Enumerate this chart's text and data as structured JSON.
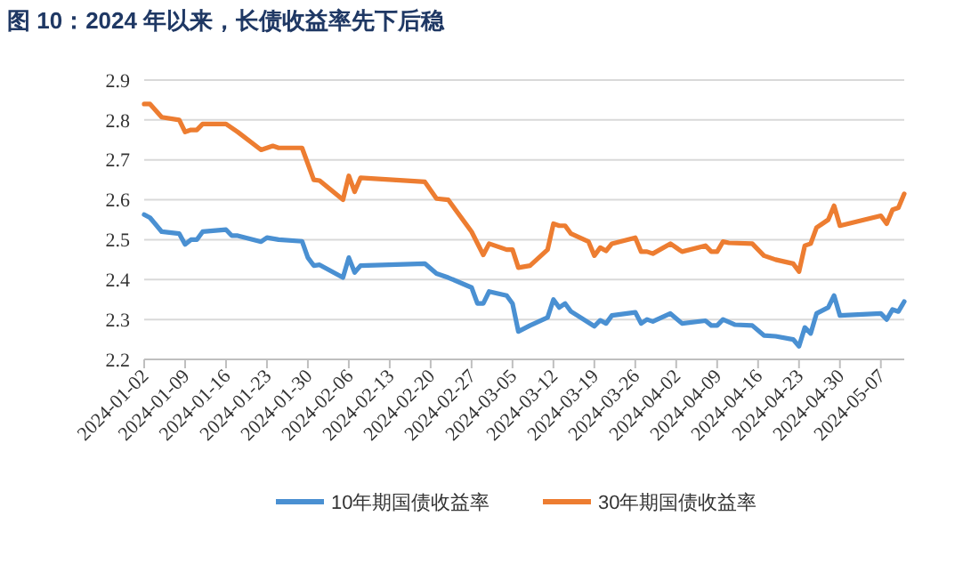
{
  "chart_data": {
    "type": "line",
    "title": "图 10：2024 年以来，长债收益率先下后稳",
    "xlim": [
      "2024-01-02",
      "2024-05-11"
    ],
    "xticks": [
      "2024-01-02",
      "2024-01-09",
      "2024-01-16",
      "2024-01-23",
      "2024-01-30",
      "2024-02-06",
      "2024-02-13",
      "2024-02-20",
      "2024-02-27",
      "2024-03-05",
      "2024-03-12",
      "2024-03-19",
      "2024-03-26",
      "2024-04-02",
      "2024-04-09",
      "2024-04-16",
      "2024-04-23",
      "2024-04-30",
      "2024-05-07"
    ],
    "ylim": [
      2.2,
      2.9
    ],
    "yticks": [
      2.2,
      2.3,
      2.4,
      2.5,
      2.6,
      2.7,
      2.8,
      2.9
    ],
    "grid": "y",
    "legend": "bottom",
    "marker": "none",
    "line_style": "solid",
    "series": [
      {
        "name": "10年期国债收益率",
        "color": "#4a90d2",
        "x": [
          "2024-01-02",
          "2024-01-03",
          "2024-01-05",
          "2024-01-08",
          "2024-01-09",
          "2024-01-10",
          "2024-01-11",
          "2024-01-12",
          "2024-01-16",
          "2024-01-17",
          "2024-01-18",
          "2024-01-22",
          "2024-01-23",
          "2024-01-25",
          "2024-01-29",
          "2024-01-30",
          "2024-01-31",
          "2024-02-01",
          "2024-02-05",
          "2024-02-06",
          "2024-02-07",
          "2024-02-08",
          "2024-02-19",
          "2024-02-21",
          "2024-02-23",
          "2024-02-27",
          "2024-02-28",
          "2024-02-29",
          "2024-03-01",
          "2024-03-04",
          "2024-03-05",
          "2024-03-06",
          "2024-03-08",
          "2024-03-11",
          "2024-03-12",
          "2024-03-13",
          "2024-03-14",
          "2024-03-15",
          "2024-03-19",
          "2024-03-20",
          "2024-03-21",
          "2024-03-22",
          "2024-03-26",
          "2024-03-27",
          "2024-03-28",
          "2024-03-29",
          "2024-04-01",
          "2024-04-03",
          "2024-04-07",
          "2024-04-08",
          "2024-04-09",
          "2024-04-10",
          "2024-04-12",
          "2024-04-15",
          "2024-04-17",
          "2024-04-19",
          "2024-04-22",
          "2024-04-23",
          "2024-04-24",
          "2024-04-25",
          "2024-04-26",
          "2024-04-28",
          "2024-04-29",
          "2024-04-30",
          "2024-05-07",
          "2024-05-08",
          "2024-05-09",
          "2024-05-10",
          "2024-05-11"
        ],
        "values": [
          2.563,
          2.555,
          2.52,
          2.515,
          2.488,
          2.5,
          2.5,
          2.52,
          2.525,
          2.51,
          2.51,
          2.495,
          2.505,
          2.5,
          2.496,
          2.455,
          2.435,
          2.437,
          2.405,
          2.455,
          2.418,
          2.435,
          2.44,
          2.415,
          2.405,
          2.38,
          2.34,
          2.34,
          2.37,
          2.36,
          2.34,
          2.27,
          2.285,
          2.305,
          2.35,
          2.33,
          2.34,
          2.32,
          2.283,
          2.298,
          2.29,
          2.31,
          2.318,
          2.29,
          2.3,
          2.295,
          2.315,
          2.29,
          2.297,
          2.285,
          2.285,
          2.3,
          2.287,
          2.285,
          2.26,
          2.258,
          2.25,
          2.233,
          2.28,
          2.265,
          2.315,
          2.33,
          2.36,
          2.31,
          2.315,
          2.3,
          2.325,
          2.32,
          2.345
        ]
      },
      {
        "name": "30年期国债收益率",
        "color": "#ed7d31",
        "x": [
          "2024-01-02",
          "2024-01-03",
          "2024-01-05",
          "2024-01-08",
          "2024-01-09",
          "2024-01-10",
          "2024-01-11",
          "2024-01-12",
          "2024-01-16",
          "2024-01-17",
          "2024-01-18",
          "2024-01-22",
          "2024-01-24",
          "2024-01-25",
          "2024-01-29",
          "2024-01-31",
          "2024-02-01",
          "2024-02-05",
          "2024-02-06",
          "2024-02-07",
          "2024-02-08",
          "2024-02-19",
          "2024-02-21",
          "2024-02-23",
          "2024-02-27",
          "2024-02-29",
          "2024-03-01",
          "2024-03-04",
          "2024-03-05",
          "2024-03-06",
          "2024-03-08",
          "2024-03-11",
          "2024-03-12",
          "2024-03-13",
          "2024-03-14",
          "2024-03-15",
          "2024-03-18",
          "2024-03-19",
          "2024-03-20",
          "2024-03-21",
          "2024-03-22",
          "2024-03-26",
          "2024-03-27",
          "2024-03-28",
          "2024-03-29",
          "2024-04-01",
          "2024-04-03",
          "2024-04-07",
          "2024-04-08",
          "2024-04-09",
          "2024-04-10",
          "2024-04-11",
          "2024-04-15",
          "2024-04-17",
          "2024-04-19",
          "2024-04-22",
          "2024-04-23",
          "2024-04-24",
          "2024-04-25",
          "2024-04-26",
          "2024-04-28",
          "2024-04-29",
          "2024-04-30",
          "2024-05-07",
          "2024-05-08",
          "2024-05-09",
          "2024-05-10",
          "2024-05-11"
        ],
        "values": [
          2.84,
          2.84,
          2.807,
          2.8,
          2.77,
          2.775,
          2.775,
          2.79,
          2.79,
          2.78,
          2.77,
          2.725,
          2.735,
          2.73,
          2.73,
          2.65,
          2.648,
          2.6,
          2.66,
          2.62,
          2.655,
          2.645,
          2.603,
          2.6,
          2.52,
          2.462,
          2.49,
          2.475,
          2.475,
          2.43,
          2.435,
          2.475,
          2.54,
          2.535,
          2.535,
          2.515,
          2.495,
          2.46,
          2.48,
          2.472,
          2.49,
          2.505,
          2.47,
          2.47,
          2.465,
          2.49,
          2.47,
          2.485,
          2.47,
          2.47,
          2.495,
          2.492,
          2.49,
          2.46,
          2.45,
          2.44,
          2.42,
          2.485,
          2.49,
          2.53,
          2.55,
          2.585,
          2.535,
          2.56,
          2.54,
          2.575,
          2.58,
          2.615
        ]
      }
    ]
  }
}
